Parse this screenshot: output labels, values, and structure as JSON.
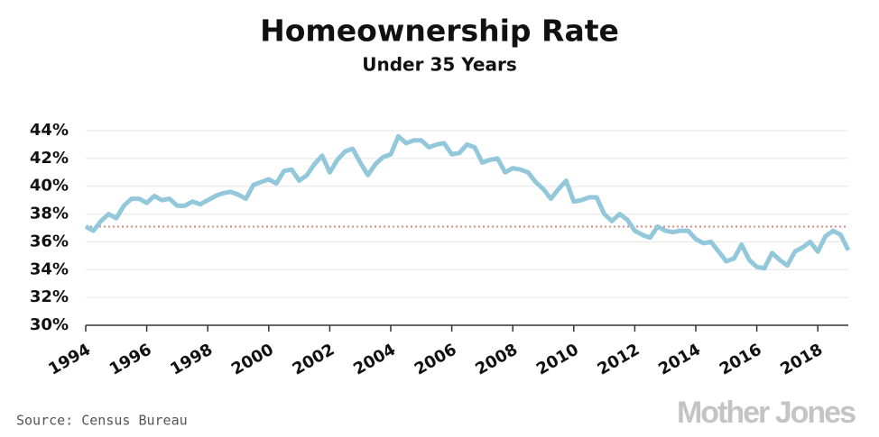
{
  "chart_data": {
    "type": "line",
    "title": "Homeownership Rate",
    "subtitle": "Under 35 Years",
    "source": "Source: Census Bureau",
    "brand": "Mother Jones",
    "x": [
      1994,
      1994.25,
      1994.5,
      1994.75,
      1995,
      1995.25,
      1995.5,
      1995.75,
      1996,
      1996.25,
      1996.5,
      1996.75,
      1997,
      1997.25,
      1997.5,
      1997.75,
      1998,
      1998.25,
      1998.5,
      1998.75,
      1999,
      1999.25,
      1999.5,
      1999.75,
      2000,
      2000.25,
      2000.5,
      2000.75,
      2001,
      2001.25,
      2001.5,
      2001.75,
      2002,
      2002.25,
      2002.5,
      2002.75,
      2003,
      2003.25,
      2003.5,
      2003.75,
      2004,
      2004.25,
      2004.5,
      2004.75,
      2005,
      2005.25,
      2005.5,
      2005.75,
      2006,
      2006.25,
      2006.5,
      2006.75,
      2007,
      2007.25,
      2007.5,
      2007.75,
      2008,
      2008.25,
      2008.5,
      2008.75,
      2009,
      2009.25,
      2009.5,
      2009.75,
      2010,
      2010.25,
      2010.5,
      2010.75,
      2011,
      2011.25,
      2011.5,
      2011.75,
      2012,
      2012.25,
      2012.5,
      2012.75,
      2013,
      2013.25,
      2013.5,
      2013.75,
      2014,
      2014.25,
      2014.5,
      2014.75,
      2015,
      2015.25,
      2015.5,
      2015.75,
      2016,
      2016.25,
      2016.5,
      2016.75,
      2017,
      2017.25,
      2017.5,
      2017.75,
      2018,
      2018.25,
      2018.5,
      2018.75,
      2019
    ],
    "series": [
      {
        "name": "Under 35",
        "color": "#93c8db",
        "values": [
          37.1,
          36.8,
          37.5,
          38.0,
          37.7,
          38.6,
          39.1,
          39.1,
          38.8,
          39.3,
          39.0,
          39.1,
          38.6,
          38.6,
          38.9,
          38.7,
          39.0,
          39.3,
          39.5,
          39.6,
          39.4,
          39.1,
          40.1,
          40.3,
          40.5,
          40.2,
          41.1,
          41.2,
          40.4,
          40.8,
          41.6,
          42.2,
          41.0,
          41.9,
          42.5,
          42.7,
          41.7,
          40.8,
          41.6,
          42.1,
          42.3,
          43.6,
          43.1,
          43.3,
          43.3,
          42.8,
          43.0,
          43.1,
          42.3,
          42.4,
          43.0,
          42.8,
          41.7,
          41.9,
          42.0,
          41.0,
          41.3,
          41.2,
          41.0,
          40.3,
          39.8,
          39.1,
          39.8,
          40.4,
          38.9,
          39.0,
          39.2,
          39.2,
          38.0,
          37.5,
          38.0,
          37.6,
          36.8,
          36.5,
          36.3,
          37.1,
          36.8,
          36.7,
          36.8,
          36.8,
          36.2,
          35.9,
          36.0,
          35.3,
          34.6,
          34.8,
          35.8,
          34.7,
          34.2,
          34.1,
          35.2,
          34.7,
          34.3,
          35.3,
          35.6,
          36.0,
          35.3,
          36.4,
          36.8,
          36.5,
          35.4
        ]
      }
    ],
    "reference_line": {
      "value": 37.1,
      "color": "#d98a80"
    },
    "xlim": [
      1994,
      2019
    ],
    "xticks": [
      1994,
      1996,
      1998,
      2000,
      2002,
      2004,
      2006,
      2008,
      2010,
      2012,
      2014,
      2016,
      2018
    ],
    "ylim": [
      30,
      44
    ],
    "yticks": [
      {
        "value": 30,
        "label": "30%"
      },
      {
        "value": 32,
        "label": "32%"
      },
      {
        "value": 34,
        "label": "34%"
      },
      {
        "value": 36,
        "label": "36%"
      },
      {
        "value": 38,
        "label": "38%"
      },
      {
        "value": 40,
        "label": "40%"
      },
      {
        "value": 42,
        "label": "42%"
      },
      {
        "value": 44,
        "label": "44%"
      }
    ],
    "grid": true
  }
}
